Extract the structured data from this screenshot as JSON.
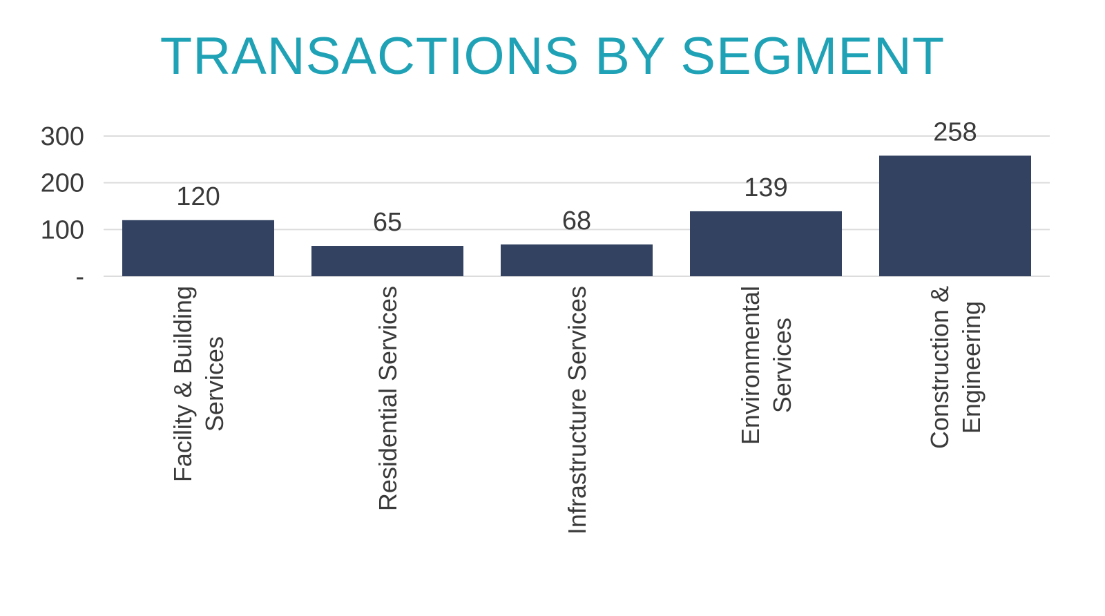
{
  "chart_data": {
    "type": "bar",
    "title": "TRANSACTIONS BY SEGMENT",
    "categories": [
      [
        "Facility & Building",
        "Services"
      ],
      [
        "Residential Services"
      ],
      [
        "Infrastructure Services"
      ],
      [
        "Environmental",
        "Services"
      ],
      [
        "Construction &",
        "Engineering"
      ]
    ],
    "values": [
      120,
      65,
      68,
      139,
      258
    ],
    "data_labels": [
      "120",
      "65",
      "68",
      "139",
      "258"
    ],
    "y_ticks": [
      {
        "value": 0,
        "label": "-"
      },
      {
        "value": 100,
        "label": "100"
      },
      {
        "value": 200,
        "label": "200"
      },
      {
        "value": 300,
        "label": "300"
      }
    ],
    "ylim": [
      0,
      300
    ],
    "grid": true,
    "legend": "none",
    "colors": {
      "bar": "#324260",
      "title": "#1fa2b5",
      "text": "#3a3a3a",
      "grid": "#dcdcdc"
    }
  }
}
